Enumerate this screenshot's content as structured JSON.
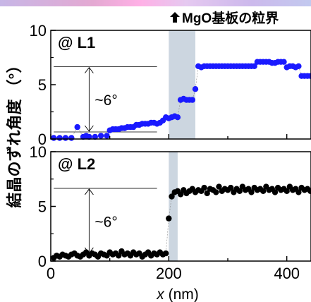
{
  "annotation": {
    "label": "MgO基板の粒界",
    "arrow_icon": "up-arrow-icon"
  },
  "colors": {
    "l1_marker": "#1a1aff",
    "l2_marker": "#000000",
    "boundary_band": "#ccd6e0",
    "top_strip": "#d9b8ec"
  },
  "chart_data": [
    {
      "type": "scatter",
      "panel_label": "@ L1",
      "xlim": [
        0,
        441
      ],
      "ylim": [
        0,
        10
      ],
      "yticks": [
        0,
        5,
        10
      ],
      "ylabel": "結晶のずれ角度 （°）",
      "band": [
        200,
        245
      ],
      "reference_lines": [
        6.65,
        0.65
      ],
      "span_label": "~6°",
      "series": [
        {
          "marker_color": "#1a1aff",
          "x": [
            5,
            15,
            25,
            35,
            45,
            55,
            60,
            65,
            75,
            85,
            95,
            100,
            105,
            110,
            115,
            120,
            125,
            130,
            135,
            140,
            145,
            150,
            155,
            160,
            165,
            170,
            175,
            180,
            185,
            190,
            195,
            200,
            205,
            210,
            215,
            220,
            225,
            230,
            235,
            240,
            245,
            250,
            255,
            260,
            265,
            270,
            275,
            280,
            285,
            290,
            295,
            300,
            305,
            310,
            315,
            320,
            325,
            330,
            335,
            340,
            345,
            350,
            355,
            360,
            365,
            370,
            375,
            380,
            385,
            390,
            395,
            400,
            405,
            410,
            415,
            420,
            425,
            430,
            435,
            440
          ],
          "y": [
            0.1,
            0.1,
            0.1,
            0.1,
            1.1,
            0.2,
            0.3,
            0.2,
            0.2,
            0.3,
            0.3,
            0.8,
            0.9,
            0.9,
            0.9,
            1.0,
            1.0,
            1.1,
            1.1,
            1.1,
            1.3,
            1.3,
            1.4,
            1.4,
            1.4,
            1.5,
            1.5,
            1.4,
            1.5,
            1.7,
            2.0,
            1.9,
            2.0,
            2.1,
            2.0,
            3.6,
            3.7,
            3.6,
            3.6,
            3.6,
            4.6,
            6.7,
            6.6,
            6.7,
            6.7,
            6.7,
            6.7,
            6.7,
            6.7,
            6.7,
            6.7,
            6.7,
            6.7,
            6.7,
            6.7,
            6.7,
            6.7,
            6.7,
            6.7,
            6.7,
            6.7,
            7.1,
            7.1,
            7.1,
            7.1,
            7.1,
            7.0,
            7.0,
            7.1,
            7.1,
            7.1,
            6.6,
            6.7,
            6.7,
            6.6,
            6.7,
            5.8,
            5.8,
            5.8,
            5.8
          ]
        }
      ]
    },
    {
      "type": "scatter",
      "panel_label": "@ L2",
      "xlim": [
        0,
        441
      ],
      "ylim": [
        0,
        10
      ],
      "yticks": [
        0,
        5,
        10
      ],
      "xticks": [
        0,
        200,
        400
      ],
      "xlabel_var": "x",
      "xlabel_unit": " (nm)",
      "band": [
        200,
        215
      ],
      "reference_lines": [
        6.65,
        0.65
      ],
      "span_label": "~6°",
      "series": [
        {
          "marker_color": "#000000",
          "x": [
            5,
            10,
            15,
            20,
            25,
            30,
            35,
            40,
            45,
            50,
            55,
            60,
            65,
            70,
            75,
            80,
            85,
            90,
            95,
            100,
            105,
            110,
            115,
            120,
            125,
            130,
            135,
            140,
            145,
            150,
            155,
            160,
            165,
            170,
            175,
            180,
            185,
            190,
            195,
            200,
            205,
            210,
            215,
            220,
            225,
            230,
            235,
            240,
            245,
            250,
            255,
            260,
            265,
            270,
            275,
            280,
            285,
            290,
            295,
            300,
            305,
            310,
            315,
            320,
            325,
            330,
            335,
            340,
            345,
            350,
            355,
            360,
            365,
            370,
            375,
            380,
            385,
            390,
            395,
            400,
            405,
            410,
            415,
            420,
            425,
            430,
            435,
            440
          ],
          "y": [
            0.3,
            0.5,
            0.4,
            0.6,
            0.5,
            0.4,
            0.6,
            0.7,
            0.5,
            0.4,
            0.6,
            0.8,
            0.5,
            0.7,
            0.6,
            0.4,
            0.7,
            0.6,
            0.5,
            0.8,
            0.6,
            0.7,
            0.5,
            0.9,
            0.6,
            0.7,
            0.5,
            0.8,
            0.6,
            0.7,
            0.4,
            0.6,
            0.8,
            0.5,
            0.7,
            0.6,
            0.8,
            0.6,
            0.7,
            3.9,
            5.9,
            6.3,
            6.4,
            6.1,
            6.5,
            6.2,
            6.4,
            6.6,
            6.3,
            6.5,
            6.4,
            6.7,
            6.2,
            6.6,
            6.5,
            6.3,
            6.8,
            6.4,
            6.6,
            6.5,
            6.7,
            6.3,
            6.6,
            6.4,
            6.8,
            6.5,
            6.6,
            6.3,
            6.7,
            6.5,
            6.6,
            6.4,
            6.8,
            6.5,
            6.6,
            6.3,
            6.7,
            6.5,
            6.6,
            6.4,
            6.8,
            6.5,
            6.6,
            6.3,
            6.7,
            6.5,
            6.6,
            6.4
          ]
        }
      ]
    }
  ]
}
